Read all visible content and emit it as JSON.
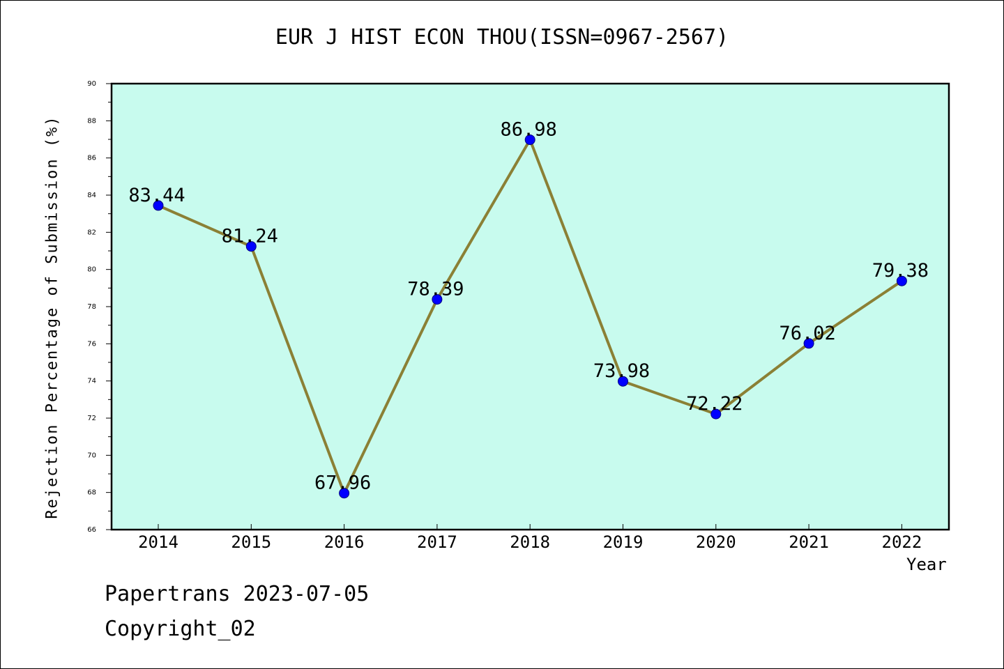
{
  "colors": {
    "plot_background": "#c8fbee",
    "line": "#8b8035",
    "marker": "#0000ff",
    "axis": "#000000"
  },
  "chart_data": {
    "type": "line",
    "title": "EUR J HIST ECON THOU(ISSN=0967-2567)",
    "xlabel": "Year",
    "ylabel": "Rejection Percentage of Submission (%)",
    "categories": [
      "2014",
      "2015",
      "2016",
      "2017",
      "2018",
      "2019",
      "2020",
      "2021",
      "2022"
    ],
    "series": [
      {
        "values": [
          83.44,
          81.24,
          67.96,
          78.39,
          86.98,
          73.98,
          72.22,
          76.02,
          79.38
        ],
        "labels": [
          "83.44",
          "81.24",
          "67.96",
          "78.39",
          "86.98",
          "73.98",
          "72.22",
          "76.02",
          "79.38"
        ]
      }
    ],
    "ylim": [
      66,
      90
    ],
    "yticks": [
      "66",
      "68",
      "70",
      "72",
      "74",
      "76",
      "78",
      "80",
      "82",
      "84",
      "86",
      "88",
      "90"
    ],
    "grid": false,
    "legend": "none"
  },
  "footer": {
    "line1": "Papertrans 2023-07-05",
    "line2": "Copyright_02"
  }
}
